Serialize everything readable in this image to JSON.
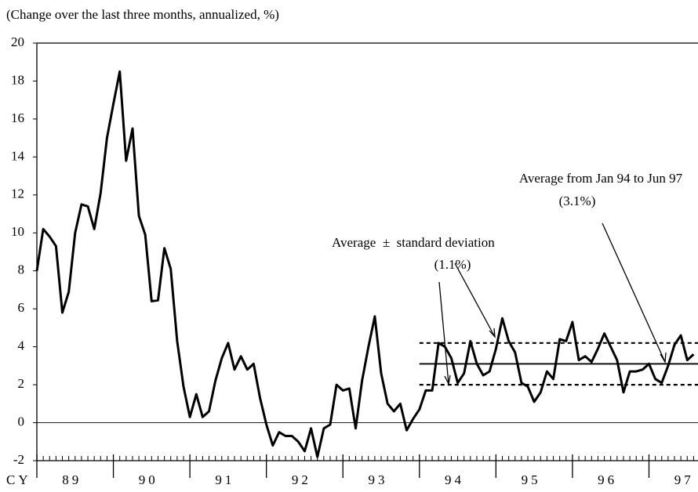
{
  "chart_data": {
    "type": "line",
    "title": "(Change over the last three months, annualized, %)",
    "xlabel": "CY",
    "categories": [
      null,
      null,
      null,
      null,
      null,
      "89",
      null,
      null,
      null,
      null,
      null,
      null,
      null,
      null,
      null,
      null,
      null,
      "90",
      null,
      null,
      null,
      null,
      null,
      null,
      null,
      null,
      null,
      null,
      null,
      "91",
      null,
      null,
      null,
      null,
      null,
      null,
      null,
      null,
      null,
      null,
      null,
      "92",
      null,
      null,
      null,
      null,
      null,
      null,
      null,
      null,
      null,
      null,
      null,
      "93",
      null,
      null,
      null,
      null,
      null,
      null,
      null,
      null,
      null,
      null,
      null,
      "94",
      null,
      null,
      null,
      null,
      null,
      null,
      null,
      null,
      null,
      null,
      null,
      "95",
      null,
      null,
      null,
      null,
      null,
      null,
      null,
      null,
      null,
      null,
      null,
      "96",
      null,
      null,
      null,
      null,
      null,
      null,
      null,
      null,
      null,
      null,
      null,
      "97",
      null,
      null
    ],
    "series": [
      {
        "name": null,
        "color": "#000000",
        "values": [
          8.0,
          10.2,
          9.8,
          9.3,
          5.8,
          6.9,
          10.0,
          11.5,
          11.4,
          10.2,
          12.1,
          15.0,
          16.8,
          18.5,
          13.8,
          15.5,
          10.9,
          9.9,
          6.4,
          6.45,
          9.2,
          8.1,
          4.3,
          1.9,
          0.3,
          1.5,
          0.3,
          0.6,
          2.2,
          3.4,
          4.2,
          2.8,
          3.5,
          2.8,
          3.1,
          1.3,
          -0.1,
          -1.2,
          -0.5,
          -0.7,
          -0.7,
          -1.0,
          -1.5,
          -0.3,
          -1.8,
          -0.3,
          -0.1,
          2.0,
          1.7,
          1.8,
          -0.3,
          2.2,
          4.0,
          5.6,
          2.6,
          1.0,
          0.6,
          1.0,
          -0.4,
          0.2,
          0.7,
          1.7,
          1.7,
          4.2,
          4.0,
          3.4,
          2.1,
          2.6,
          4.3,
          3.1,
          2.5,
          2.7,
          3.9,
          5.5,
          4.3,
          3.7,
          2.1,
          1.9,
          1.1,
          1.6,
          2.7,
          2.3,
          4.4,
          4.3,
          5.3,
          3.3,
          3.5,
          3.2,
          3.9,
          4.7,
          4.0,
          3.3,
          1.6,
          2.7,
          2.7,
          2.8,
          3.1,
          2.3,
          2.1,
          3.0,
          4.1,
          4.6,
          3.3,
          3.6
        ]
      }
    ],
    "ylim": [
      -2,
      20
    ],
    "yticks": [
      -2,
      0,
      2,
      4,
      6,
      8,
      10,
      12,
      14,
      16,
      18,
      20
    ],
    "reference_lines": [
      {
        "value": 3.1,
        "style": "solid"
      },
      {
        "value": 4.2,
        "style": "dashed"
      },
      {
        "value": 2.0,
        "style": "dashed"
      }
    ],
    "annotations": [
      "Average from Jan 94 to Jun 97",
      "(3.1%)",
      "Average  ±  standard deviation",
      "(1.1%)"
    ]
  }
}
